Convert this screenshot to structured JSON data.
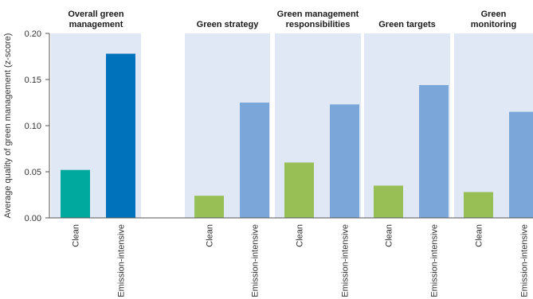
{
  "chart_data": {
    "type": "bar",
    "ylabel": "Average quality of green management (z-score)",
    "ylim": [
      0,
      0.2
    ],
    "yticks": [
      "0.00",
      "0.05",
      "0.10",
      "0.15",
      "0.20"
    ],
    "ytick_values": [
      0,
      0.05,
      0.1,
      0.15,
      0.2
    ],
    "categories": [
      "Clean",
      "Emission-intensive"
    ],
    "grid": false,
    "colors": {
      "panel_bg": "#e1e8f5",
      "overall_clean": "#00a99d",
      "overall_emission": "#0072bc",
      "sub_clean": "#97bf55",
      "sub_emission": "#7aa6d9"
    },
    "panels": [
      {
        "title_lines": [
          "Overall green",
          "management"
        ],
        "values": [
          0.052,
          0.178
        ]
      },
      {
        "title_lines": [
          "Green strategy"
        ],
        "values": [
          0.024,
          0.125
        ]
      },
      {
        "title_lines": [
          "Green management",
          "responsibilities"
        ],
        "values": [
          0.06,
          0.123
        ]
      },
      {
        "title_lines": [
          "Green targets"
        ],
        "values": [
          0.035,
          0.144
        ]
      },
      {
        "title_lines": [
          "Green",
          "monitoring"
        ],
        "values": [
          0.028,
          0.115
        ]
      }
    ]
  }
}
